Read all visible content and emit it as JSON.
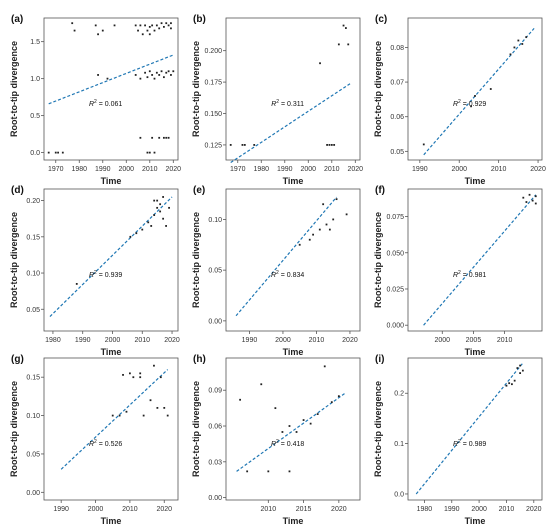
{
  "figure": {
    "xlabel": "Time",
    "ylabel": "Root-to-tip divergence",
    "r2_prefix": "R",
    "r2_sup": "2",
    "r2_sep": " = "
  },
  "colors": {
    "trend": "#1f77b4",
    "points": "#222222",
    "frame": "#555555"
  },
  "chart_data": [
    {
      "label": "(a)",
      "type": "scatter",
      "r2": "0.061",
      "xlim": [
        1965,
        2022
      ],
      "ylim": [
        -0.1,
        1.82
      ],
      "xticks": [
        1970,
        1980,
        1990,
        2000,
        2010,
        2020
      ],
      "yticks": [
        0.0,
        0.5,
        1.0,
        1.5
      ],
      "ytick_labels": [
        "0.0",
        "0.5",
        "1.0",
        "1.5"
      ],
      "trend": [
        [
          1967,
          0.66
        ],
        [
          2020,
          1.32
        ]
      ],
      "points": [
        [
          1967,
          0
        ],
        [
          1970,
          0
        ],
        [
          1971,
          0
        ],
        [
          1973,
          0
        ],
        [
          1977,
          1.75
        ],
        [
          1978,
          1.65
        ],
        [
          1987,
          1.72
        ],
        [
          1988,
          1.6
        ],
        [
          1990,
          1.65
        ],
        [
          1995,
          1.72
        ],
        [
          2004,
          1.72
        ],
        [
          2005,
          1.65
        ],
        [
          2006,
          1.72
        ],
        [
          2007,
          1.6
        ],
        [
          2008,
          1.72
        ],
        [
          2009,
          1.65
        ],
        [
          2010,
          1.7
        ],
        [
          2010,
          1.6
        ],
        [
          2011,
          1.72
        ],
        [
          2012,
          1.65
        ],
        [
          2013,
          1.72
        ],
        [
          2014,
          1.68
        ],
        [
          2015,
          1.75
        ],
        [
          2016,
          1.7
        ],
        [
          2017,
          1.75
        ],
        [
          2018,
          1.72
        ],
        [
          2019,
          1.75
        ],
        [
          2019,
          1.68
        ],
        [
          1988,
          1.05
        ],
        [
          1992,
          1.0
        ],
        [
          2004,
          1.05
        ],
        [
          2006,
          1.0
        ],
        [
          2008,
          1.08
        ],
        [
          2009,
          1.02
        ],
        [
          2010,
          1.1
        ],
        [
          2011,
          1.05
        ],
        [
          2012,
          1.0
        ],
        [
          2013,
          1.08
        ],
        [
          2014,
          1.05
        ],
        [
          2015,
          1.1
        ],
        [
          2016,
          1.02
        ],
        [
          2017,
          1.08
        ],
        [
          2018,
          1.1
        ],
        [
          2019,
          1.05
        ],
        [
          2020,
          1.1
        ],
        [
          2006,
          0.2
        ],
        [
          2009,
          0.0
        ],
        [
          2010,
          0.0
        ],
        [
          2012,
          0.0
        ],
        [
          2014,
          0.2
        ],
        [
          2016,
          0.2
        ],
        [
          2017,
          0.2
        ],
        [
          2018,
          0.2
        ],
        [
          2011,
          0.2
        ]
      ]
    },
    {
      "label": "(b)",
      "type": "scatter",
      "r2": "0.311",
      "xlim": [
        1965,
        2022
      ],
      "ylim": [
        0.113,
        0.226
      ],
      "xticks": [
        1970,
        1980,
        1990,
        2000,
        2010,
        2020
      ],
      "yticks": [
        0.125,
        0.15,
        0.175,
        0.2
      ],
      "ytick_labels": [
        "0.125",
        "0.150",
        "0.175",
        "0.200"
      ],
      "trend": [
        [
          1967,
          0.111
        ],
        [
          2018,
          0.174
        ]
      ],
      "points": [
        [
          1967,
          0.125
        ],
        [
          1972,
          0.125
        ],
        [
          1973,
          0.125
        ],
        [
          1977,
          0.125
        ],
        [
          2005,
          0.19
        ],
        [
          2008,
          0.125
        ],
        [
          2009,
          0.125
        ],
        [
          2010,
          0.125
        ],
        [
          2011,
          0.125
        ],
        [
          2013,
          0.205
        ],
        [
          2015,
          0.22
        ],
        [
          2016,
          0.218
        ],
        [
          2017,
          0.205
        ]
      ]
    },
    {
      "label": "(c)",
      "type": "scatter",
      "r2": "0.929",
      "xlim": [
        1987,
        2021
      ],
      "ylim": [
        0.0475,
        0.0885
      ],
      "xticks": [
        1990,
        2000,
        2010,
        2020
      ],
      "yticks": [
        0.05,
        0.06,
        0.07,
        0.08
      ],
      "ytick_labels": [
        "0.05",
        "0.06",
        "0.07",
        "0.08"
      ],
      "trend": [
        [
          1991,
          0.049
        ],
        [
          2019,
          0.0855
        ]
      ],
      "points": [
        [
          1991,
          0.052
        ],
        [
          2003,
          0.063
        ],
        [
          2004,
          0.066
        ],
        [
          2008,
          0.068
        ],
        [
          2013,
          0.078
        ],
        [
          2014,
          0.08
        ],
        [
          2015,
          0.082
        ],
        [
          2016,
          0.081
        ],
        [
          2017,
          0.083
        ]
      ]
    },
    {
      "label": "(d)",
      "type": "scatter",
      "r2": "0.939",
      "xlim": [
        1977,
        2022
      ],
      "ylim": [
        0.02,
        0.216
      ],
      "xticks": [
        1980,
        1990,
        2000,
        2010,
        2020
      ],
      "yticks": [
        0.05,
        0.1,
        0.15,
        0.2
      ],
      "ytick_labels": [
        "0.05",
        "0.10",
        "0.15",
        "0.20"
      ],
      "trend": [
        [
          1979,
          0.04
        ],
        [
          2020,
          0.205
        ]
      ],
      "points": [
        [
          1988,
          0.085
        ],
        [
          2006,
          0.15
        ],
        [
          2008,
          0.155
        ],
        [
          2010,
          0.16
        ],
        [
          2012,
          0.17
        ],
        [
          2013,
          0.165
        ],
        [
          2014,
          0.18
        ],
        [
          2014,
          0.2
        ],
        [
          2015,
          0.19
        ],
        [
          2015,
          0.2
        ],
        [
          2016,
          0.185
        ],
        [
          2016,
          0.195
        ],
        [
          2017,
          0.175
        ],
        [
          2017,
          0.205
        ],
        [
          2018,
          0.165
        ],
        [
          2019,
          0.19
        ]
      ]
    },
    {
      "label": "(e)",
      "type": "scatter",
      "r2": "0.834",
      "xlim": [
        1983,
        2023
      ],
      "ylim": [
        -0.01,
        0.13
      ],
      "xticks": [
        1990,
        2000,
        2010,
        2020
      ],
      "yticks": [
        0.0,
        0.05,
        0.1
      ],
      "ytick_labels": [
        "0.00",
        "0.05",
        "0.10"
      ],
      "trend": [
        [
          1986,
          0.005
        ],
        [
          2016,
          0.122
        ]
      ],
      "points": [
        [
          2005,
          0.075
        ],
        [
          2008,
          0.08
        ],
        [
          2009,
          0.085
        ],
        [
          2011,
          0.09
        ],
        [
          2012,
          0.115
        ],
        [
          2013,
          0.095
        ],
        [
          2014,
          0.09
        ],
        [
          2015,
          0.1
        ],
        [
          2016,
          0.12
        ],
        [
          2019,
          0.105
        ]
      ]
    },
    {
      "label": "(f)",
      "type": "scatter",
      "r2": "0.981",
      "xlim": [
        1994.5,
        2016
      ],
      "ylim": [
        -0.004,
        0.094
      ],
      "xticks": [
        2000,
        2005,
        2010
      ],
      "xtick_labels": [
        "2000",
        "2005",
        "2010"
      ],
      "yticks": [
        0.0,
        0.025,
        0.05,
        0.075
      ],
      "ytick_labels": [
        "0.000",
        "0.025",
        "0.050",
        "0.075"
      ],
      "trend": [
        [
          1997,
          0.0
        ],
        [
          2015,
          0.09
        ]
      ],
      "points": [
        [
          2013,
          0.088
        ],
        [
          2013.5,
          0.085
        ],
        [
          2014,
          0.09
        ],
        [
          2014.5,
          0.086
        ],
        [
          2015,
          0.089
        ],
        [
          2015,
          0.084
        ]
      ]
    },
    {
      "label": "(g)",
      "type": "scatter",
      "r2": "0.526",
      "xlim": [
        1985,
        2024
      ],
      "ylim": [
        -0.01,
        0.175
      ],
      "xticks": [
        1990,
        2000,
        2010,
        2020
      ],
      "yticks": [
        0.0,
        0.05,
        0.1,
        0.15
      ],
      "ytick_labels": [
        "0.00",
        "0.05",
        "0.10",
        "0.15"
      ],
      "trend": [
        [
          1990,
          0.03
        ],
        [
          2021,
          0.16
        ]
      ],
      "points": [
        [
          2005,
          0.1
        ],
        [
          2007,
          0.1
        ],
        [
          2008,
          0.153
        ],
        [
          2009,
          0.105
        ],
        [
          2010,
          0.155
        ],
        [
          2011,
          0.15
        ],
        [
          2013,
          0.15
        ],
        [
          2013,
          0.155
        ],
        [
          2014,
          0.1
        ],
        [
          2016,
          0.12
        ],
        [
          2017,
          0.165
        ],
        [
          2018,
          0.11
        ],
        [
          2019,
          0.15
        ],
        [
          2020,
          0.11
        ],
        [
          2021,
          0.1
        ]
      ]
    },
    {
      "label": "(h)",
      "type": "scatter",
      "r2": "0.418",
      "xlim": [
        2004,
        2023
      ],
      "ylim": [
        -0.002,
        0.117
      ],
      "xticks": [
        2010,
        2015,
        2020
      ],
      "yticks": [
        0.0,
        0.03,
        0.06,
        0.09
      ],
      "ytick_labels": [
        "0.00",
        "0.03",
        "0.06",
        "0.09"
      ],
      "trend": [
        [
          2005.5,
          0.022
        ],
        [
          2021,
          0.088
        ]
      ],
      "points": [
        [
          2006,
          0.082
        ],
        [
          2007,
          0.022
        ],
        [
          2009,
          0.095
        ],
        [
          2010,
          0.022
        ],
        [
          2011,
          0.075
        ],
        [
          2012,
          0.055
        ],
        [
          2013,
          0.06
        ],
        [
          2013,
          0.022
        ],
        [
          2014,
          0.055
        ],
        [
          2015,
          0.065
        ],
        [
          2016,
          0.062
        ],
        [
          2017,
          0.07
        ],
        [
          2018,
          0.11
        ],
        [
          2019,
          0.08
        ],
        [
          2020,
          0.085
        ]
      ]
    },
    {
      "label": "(i)",
      "type": "scatter",
      "r2": "0.989",
      "xlim": [
        1974,
        2023
      ],
      "ylim": [
        -0.012,
        0.27
      ],
      "xticks": [
        1980,
        1990,
        2000,
        2010,
        2020
      ],
      "yticks": [
        0.0,
        0.1,
        0.2
      ],
      "ytick_labels": [
        "0.0",
        "0.1",
        "0.2"
      ],
      "trend": [
        [
          1977,
          0.0
        ],
        [
          2016,
          0.26
        ]
      ],
      "points": [
        [
          2010,
          0.215
        ],
        [
          2011,
          0.22
        ],
        [
          2012,
          0.218
        ],
        [
          2013,
          0.225
        ],
        [
          2014,
          0.25
        ],
        [
          2015,
          0.24
        ],
        [
          2015,
          0.255
        ],
        [
          2016,
          0.245
        ]
      ]
    }
  ]
}
